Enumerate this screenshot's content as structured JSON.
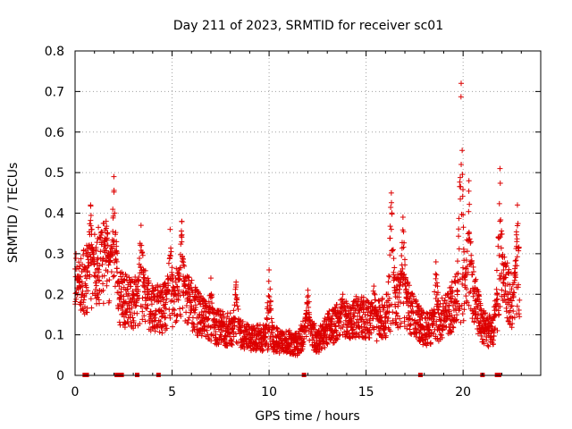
{
  "chart_data": {
    "type": "scatter",
    "title": "Day 211 of 2023, SRMTID for receiver sc01",
    "xlabel": "GPS time / hours",
    "ylabel": "SRMTID / TECUs",
    "xlim": [
      0,
      24
    ],
    "ylim": [
      0,
      0.8
    ],
    "x_ticks": [
      0,
      5,
      10,
      15,
      20
    ],
    "y_ticks": [
      0,
      0.1,
      0.2,
      0.3,
      0.4,
      0.5,
      0.6,
      0.7,
      0.8
    ],
    "x_tick_labels": [
      "0",
      "5",
      "10",
      "15",
      "20"
    ],
    "y_tick_labels": [
      "0",
      "0.1",
      "0.2",
      "0.3",
      "0.4",
      "0.5",
      "0.6",
      "0.7",
      "0.8"
    ],
    "grid": true,
    "marker": "+",
    "color": "#dd0000",
    "series": [
      {
        "name": "SRMTID",
        "trend": [
          [
            0.0,
            0.2
          ],
          [
            0.6,
            0.23
          ],
          [
            1.0,
            0.26
          ],
          [
            1.5,
            0.27
          ],
          [
            2.0,
            0.26
          ],
          [
            2.3,
            0.19
          ],
          [
            3.0,
            0.17
          ],
          [
            3.5,
            0.2
          ],
          [
            4.0,
            0.16
          ],
          [
            4.5,
            0.16
          ],
          [
            5.0,
            0.18
          ],
          [
            5.5,
            0.2
          ],
          [
            6.0,
            0.17
          ],
          [
            6.5,
            0.14
          ],
          [
            7.0,
            0.12
          ],
          [
            8.0,
            0.11
          ],
          [
            9.0,
            0.09
          ],
          [
            10.0,
            0.09
          ],
          [
            10.5,
            0.085
          ],
          [
            11.0,
            0.08
          ],
          [
            11.5,
            0.075
          ],
          [
            12.0,
            0.12
          ],
          [
            12.5,
            0.08
          ],
          [
            13.0,
            0.11
          ],
          [
            13.5,
            0.13
          ],
          [
            14.0,
            0.14
          ],
          [
            15.0,
            0.14
          ],
          [
            15.5,
            0.13
          ],
          [
            16.0,
            0.14
          ],
          [
            16.5,
            0.18
          ],
          [
            17.0,
            0.18
          ],
          [
            17.5,
            0.14
          ],
          [
            18.0,
            0.11
          ],
          [
            18.5,
            0.12
          ],
          [
            19.0,
            0.14
          ],
          [
            19.5,
            0.17
          ],
          [
            20.0,
            0.2
          ],
          [
            20.5,
            0.2
          ],
          [
            21.0,
            0.12
          ],
          [
            21.5,
            0.1
          ],
          [
            22.0,
            0.22
          ],
          [
            22.5,
            0.18
          ],
          [
            22.9,
            0.2
          ]
        ],
        "spikes": [
          [
            0.05,
            0.3
          ],
          [
            0.8,
            0.42
          ],
          [
            1.6,
            0.38
          ],
          [
            2.0,
            0.49
          ],
          [
            3.4,
            0.37
          ],
          [
            4.9,
            0.36
          ],
          [
            5.5,
            0.38
          ],
          [
            7.0,
            0.24
          ],
          [
            8.3,
            0.23
          ],
          [
            10.0,
            0.26
          ],
          [
            12.0,
            0.21
          ],
          [
            13.8,
            0.2
          ],
          [
            15.4,
            0.22
          ],
          [
            16.3,
            0.45
          ],
          [
            16.9,
            0.39
          ],
          [
            18.6,
            0.28
          ],
          [
            19.9,
            0.72
          ],
          [
            20.3,
            0.48
          ],
          [
            21.9,
            0.51
          ],
          [
            22.8,
            0.42
          ]
        ],
        "gap_markers_x": [
          0.5,
          0.6,
          2.15,
          2.3,
          2.4,
          3.2,
          4.3,
          11.8,
          17.8,
          21.0,
          21.75,
          21.85
        ]
      }
    ]
  }
}
